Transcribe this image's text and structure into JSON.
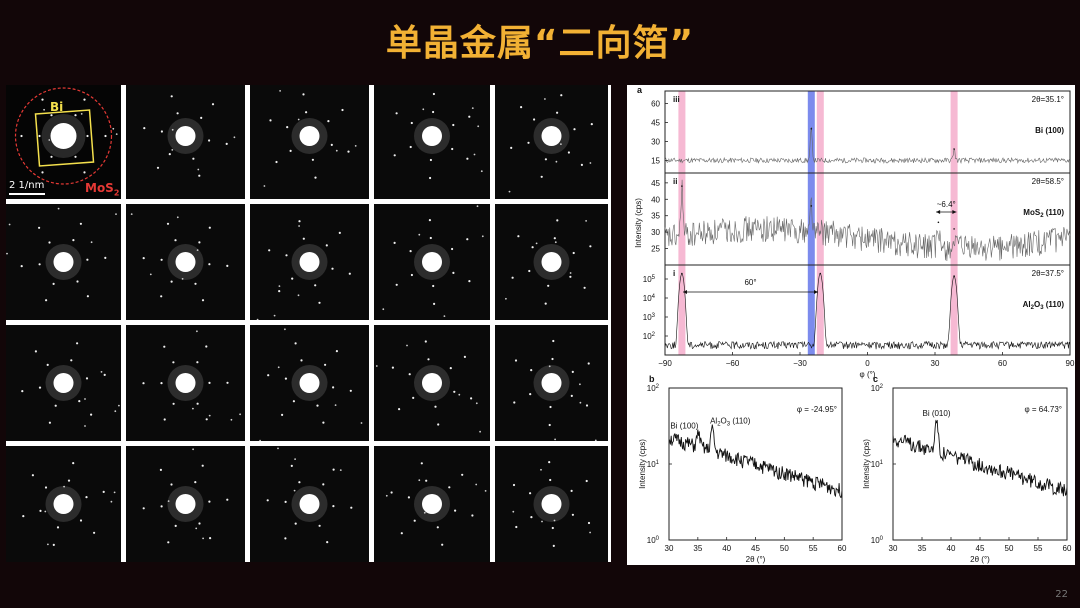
{
  "slide": {
    "title": "单晶金属“二向箔”",
    "page_number": "22",
    "title_color": "#f2b134"
  },
  "sad_grid": {
    "rows": 4,
    "cols": 5,
    "inset": {
      "label_bi": "Bi",
      "label_mos2": "MoS",
      "label_mos2_sub": "2",
      "scale": "2 1/nm",
      "bi_color": "#f4e04d",
      "mos2_color": "#e53935"
    }
  },
  "chart_data": [
    {
      "panel": "a",
      "type": "line",
      "xlabel": "φ (°)",
      "ylabel": "Intensity (cps)",
      "xlim": [
        -90,
        90
      ],
      "xticks": [
        -90,
        -60,
        -30,
        0,
        30,
        60,
        90
      ],
      "highlight_bands": [
        {
          "center": -82.5,
          "color": "#f4a7c8"
        },
        {
          "center": -25.0,
          "color": "#5b6ee8"
        },
        {
          "center": -21.0,
          "color": "#f4a7c8"
        },
        {
          "center": 38.5,
          "color": "#f4a7c8"
        }
      ],
      "subpanels": [
        {
          "id": "iii",
          "two_theta": "2θ=35.1°",
          "label": "Bi (100)",
          "yticks": [
            "60",
            "45",
            "30",
            "15"
          ],
          "ylim": [
            5,
            70
          ],
          "baseline": 15,
          "peaks": [
            {
              "x": -25,
              "y": 40
            },
            {
              "x": 38.5,
              "y": 24
            }
          ]
        },
        {
          "id": "ii",
          "two_theta": "2θ=58.5°",
          "label": "MoS",
          "label_sub": "2",
          "label_tail": " (110)",
          "yticks": [
            "45",
            "40",
            "35",
            "30",
            "25"
          ],
          "ylim": [
            20,
            48
          ],
          "baseline": 28,
          "peaks": [
            {
              "x": -82.5,
              "y": 44
            },
            {
              "x": -25,
              "y": 38
            },
            {
              "x": 31.5,
              "y": 33
            },
            {
              "x": 38.5,
              "y": 31
            }
          ],
          "annotation": "~6.4°"
        },
        {
          "id": "i",
          "two_theta": "2θ=37.5°",
          "label": "Al",
          "label_sub": "2",
          "label_mid": "O",
          "label_sub2": "3",
          "label_tail": " (110)",
          "ytick_base": "10",
          "ytick_exps": [
            "5",
            "4",
            "3",
            "2"
          ],
          "yscale": "log",
          "ylim": [
            30,
            500000
          ],
          "baseline": 80,
          "peaks": [
            {
              "x": -82.5,
              "y": 200000
            },
            {
              "x": -21,
              "y": 200000
            },
            {
              "x": 38.5,
              "y": 150000
            }
          ],
          "annotation": "60°"
        }
      ]
    },
    {
      "panel": "b",
      "type": "line",
      "phi": "φ = -24.95°",
      "xlabel": "2θ (°)",
      "ylabel": "Intensity (cps)",
      "yscale": "log",
      "xlim": [
        30,
        60
      ],
      "xticks": [
        "30",
        "35",
        "40",
        "45",
        "50",
        "55",
        "60"
      ],
      "ytick_base": "10",
      "ytick_exps": [
        "2",
        "1",
        "0"
      ],
      "trend": [
        {
          "x": 30,
          "y": 22
        },
        {
          "x": 60,
          "y": 4.5
        }
      ],
      "peaks": [
        {
          "x": 35.1,
          "y": 26,
          "label": "Bi (100)"
        },
        {
          "x": 37.5,
          "y": 30,
          "label": "Al",
          "label_sub": "2",
          "label_mid": "O",
          "label_sub2": "3",
          "label_tail": " (110)"
        }
      ]
    },
    {
      "panel": "c",
      "type": "line",
      "phi": "φ = 64.73°",
      "xlabel": "2θ (°)",
      "ylabel": "Intensity (cps)",
      "yscale": "log",
      "xlim": [
        30,
        60
      ],
      "xticks": [
        "30",
        "35",
        "40",
        "45",
        "50",
        "55",
        "60"
      ],
      "ytick_base": "10",
      "ytick_exps": [
        "2",
        "1",
        "0"
      ],
      "trend": [
        {
          "x": 30,
          "y": 22
        },
        {
          "x": 60,
          "y": 4.5
        }
      ],
      "peaks": [
        {
          "x": 37.5,
          "y": 38,
          "label": "Bi (010)"
        }
      ]
    }
  ]
}
